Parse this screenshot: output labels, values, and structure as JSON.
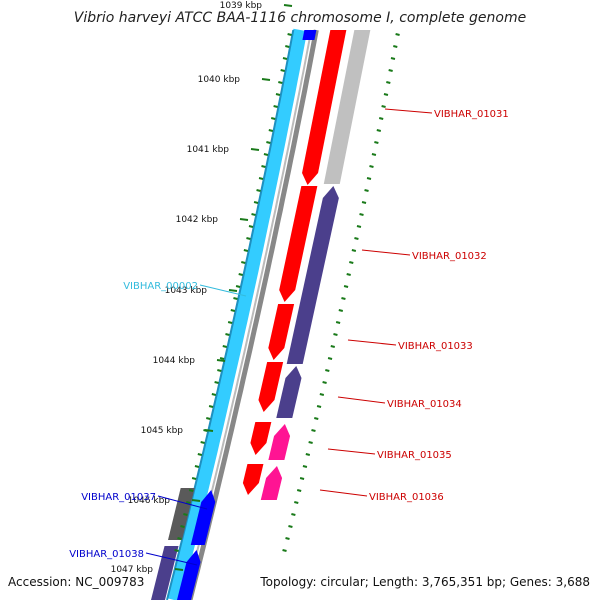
{
  "title": "Vibrio harveyi ATCC BAA-1116 chromosome I, complete genome",
  "footer": {
    "accession": "Accession: NC_009783",
    "topology": "Topology: circular; Length: 3,765,351 bp; Genes: 3,688"
  },
  "colors": {
    "red": "#ff0000",
    "darkred": "#b30000",
    "slate": "#4b3f8c",
    "slate_dark": "#2e2766",
    "silver": "#c0c0c0",
    "gray_dark": "#5a5a5a",
    "magenta": "#ff1493",
    "blue": "#0000ff",
    "lightblue": "#33ccff",
    "backbone": "#888888",
    "gc_dot": "#1a7a1a",
    "label_red": "#cc0000",
    "label_blue": "#0000cc",
    "label_cyan": "#33bbdd"
  },
  "ticks": [
    {
      "label": "1039 kbp"
    },
    {
      "label": "1040 kbp"
    },
    {
      "label": "1041 kbp"
    },
    {
      "label": "1042 kbp"
    },
    {
      "label": "1043 kbp"
    },
    {
      "label": "1044 kbp"
    },
    {
      "label": "1045 kbp"
    },
    {
      "label": "1046 kbp"
    },
    {
      "label": "1047 kbp"
    }
  ],
  "gene_labels": [
    {
      "text": "VIBHAR_01031",
      "color": "label_red"
    },
    {
      "text": "VIBHAR_01032",
      "color": "label_red"
    },
    {
      "text": "VIBHAR_01033",
      "color": "label_red"
    },
    {
      "text": "VIBHAR_01034",
      "color": "label_red"
    },
    {
      "text": "VIBHAR_01035",
      "color": "label_red"
    },
    {
      "text": "VIBHAR_01036",
      "color": "label_red"
    },
    {
      "text": "VIBHAR_00002",
      "color": "label_cyan"
    },
    {
      "text": "VIBHAR_01037",
      "color": "label_blue"
    },
    {
      "text": "VIBHAR_01038",
      "color": "label_blue"
    }
  ]
}
